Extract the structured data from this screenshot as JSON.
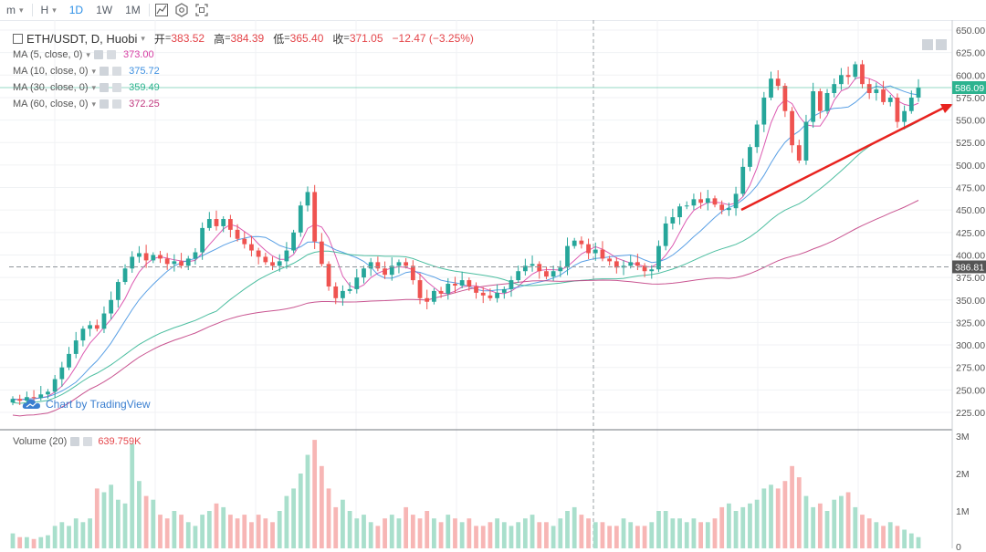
{
  "toolbar": {
    "items": [
      {
        "label": "m",
        "caret": "▾"
      },
      {
        "label": "H",
        "caret": "▾"
      },
      {
        "label": "1D",
        "active": true
      },
      {
        "label": "1W"
      },
      {
        "label": "1M"
      }
    ],
    "icons": [
      "chart-type-icon",
      "settings-icon",
      "fullscreen-icon"
    ]
  },
  "legend": {
    "symbol": "ETH/USDT, D, Huobi",
    "caret": "▾",
    "ohlc": [
      {
        "key": "开",
        "value": "383.52"
      },
      {
        "key": "高",
        "value": "384.39"
      },
      {
        "key": "低",
        "value": "365.40"
      },
      {
        "key": "收",
        "value": "371.05"
      }
    ],
    "change": "−12.47 (−3.25%)",
    "mas": [
      {
        "name": "MA (5, close, 0)",
        "value": "373.00",
        "color": "#d63da3"
      },
      {
        "name": "MA (10, close, 0)",
        "value": "375.72",
        "color": "#3d8fe0"
      },
      {
        "name": "MA (30, close, 0)",
        "value": "359.49",
        "color": "#2db38f"
      },
      {
        "name": "MA (60, close, 0)",
        "value": "372.25",
        "color": "#c0377e"
      }
    ]
  },
  "volume_legend": {
    "name": "Volume (20)",
    "value": "639.759K"
  },
  "watermark": "Chart by TradingView",
  "colors": {
    "up": "#26a69a",
    "down": "#ef5350",
    "up_vol": "#a9dfcc",
    "down_vol": "#f7b6b5",
    "axis_text": "#555555",
    "accent": "#2a8ee6",
    "trendline": "#e8231f"
  },
  "chart_data": {
    "type": "candlestick",
    "price_axis": {
      "min": 225,
      "max": 650,
      "ticks": [
        "650.00",
        "625.00",
        "600.00",
        "575.00",
        "550.00",
        "525.00",
        "500.00",
        "475.00",
        "450.00",
        "425.00",
        "400.00",
        "375.00",
        "350.00",
        "325.00",
        "300.00",
        "275.00",
        "250.00",
        "225.00"
      ]
    },
    "price_labels": [
      {
        "value": 586.09,
        "text": "586.09",
        "color": "#2db38f"
      },
      {
        "value": 386.81,
        "text": "386.81",
        "color": "#555555"
      }
    ],
    "volume_axis": {
      "ticks": [
        {
          "value": 3,
          "text": "3M"
        },
        {
          "value": 2,
          "text": "2M"
        },
        {
          "value": 1,
          "text": "1M"
        },
        {
          "value": 0,
          "text": "0"
        }
      ]
    },
    "closes": [
      240,
      238,
      242,
      241,
      245,
      248,
      262,
      275,
      290,
      305,
      318,
      322,
      318,
      335,
      350,
      370,
      385,
      398,
      402,
      394,
      400,
      396,
      390,
      393,
      388,
      396,
      403,
      430,
      440,
      432,
      440,
      428,
      418,
      412,
      405,
      398,
      392,
      388,
      393,
      405,
      425,
      455,
      470,
      415,
      390,
      365,
      352,
      360,
      362,
      375,
      385,
      392,
      385,
      378,
      388,
      392,
      388,
      372,
      352,
      348,
      360,
      357,
      368,
      366,
      372,
      365,
      358,
      355,
      352,
      358,
      362,
      372,
      382,
      388,
      390,
      382,
      376,
      382,
      386,
      410,
      416,
      412,
      402,
      406,
      396,
      393,
      386,
      388,
      392,
      388,
      382,
      384,
      410,
      435,
      442,
      454,
      455,
      462,
      458,
      463,
      456,
      450,
      452,
      468,
      498,
      520,
      545,
      575,
      596,
      588,
      560,
      522,
      505,
      548,
      582,
      560,
      580,
      590,
      600,
      598,
      612,
      590,
      580,
      584,
      570,
      575,
      548,
      560,
      575,
      586
    ],
    "volumes": [
      0.4,
      0.3,
      0.3,
      0.25,
      0.3,
      0.35,
      0.6,
      0.7,
      0.6,
      0.8,
      0.7,
      0.8,
      1.6,
      1.5,
      1.7,
      1.3,
      1.2,
      2.8,
      1.8,
      1.4,
      1.3,
      0.9,
      0.8,
      1.0,
      0.9,
      0.7,
      0.6,
      0.9,
      1.0,
      1.2,
      1.1,
      0.9,
      0.8,
      0.9,
      0.7,
      0.9,
      0.8,
      0.7,
      1.0,
      1.4,
      1.6,
      2.0,
      2.5,
      2.9,
      2.2,
      1.6,
      1.1,
      1.3,
      1.0,
      0.8,
      0.9,
      0.7,
      0.6,
      0.8,
      0.9,
      0.8,
      1.1,
      0.9,
      0.8,
      1.0,
      0.8,
      0.7,
      0.9,
      0.8,
      0.7,
      0.8,
      0.6,
      0.6,
      0.7,
      0.8,
      0.7,
      0.6,
      0.7,
      0.8,
      0.9,
      0.7,
      0.7,
      0.6,
      0.8,
      1.0,
      1.1,
      0.9,
      0.8,
      0.7,
      0.7,
      0.6,
      0.6,
      0.8,
      0.7,
      0.6,
      0.6,
      0.7,
      1.0,
      1.0,
      0.8,
      0.8,
      0.7,
      0.8,
      0.7,
      0.7,
      0.8,
      1.1,
      1.2,
      1.0,
      1.1,
      1.2,
      1.3,
      1.6,
      1.7,
      1.6,
      1.8,
      2.2,
      1.9,
      1.4,
      1.1,
      1.2,
      1.0,
      1.3,
      1.4,
      1.5,
      1.1,
      0.9,
      0.8,
      0.7,
      0.6,
      0.7,
      0.6,
      0.5,
      0.4,
      0.3
    ]
  }
}
